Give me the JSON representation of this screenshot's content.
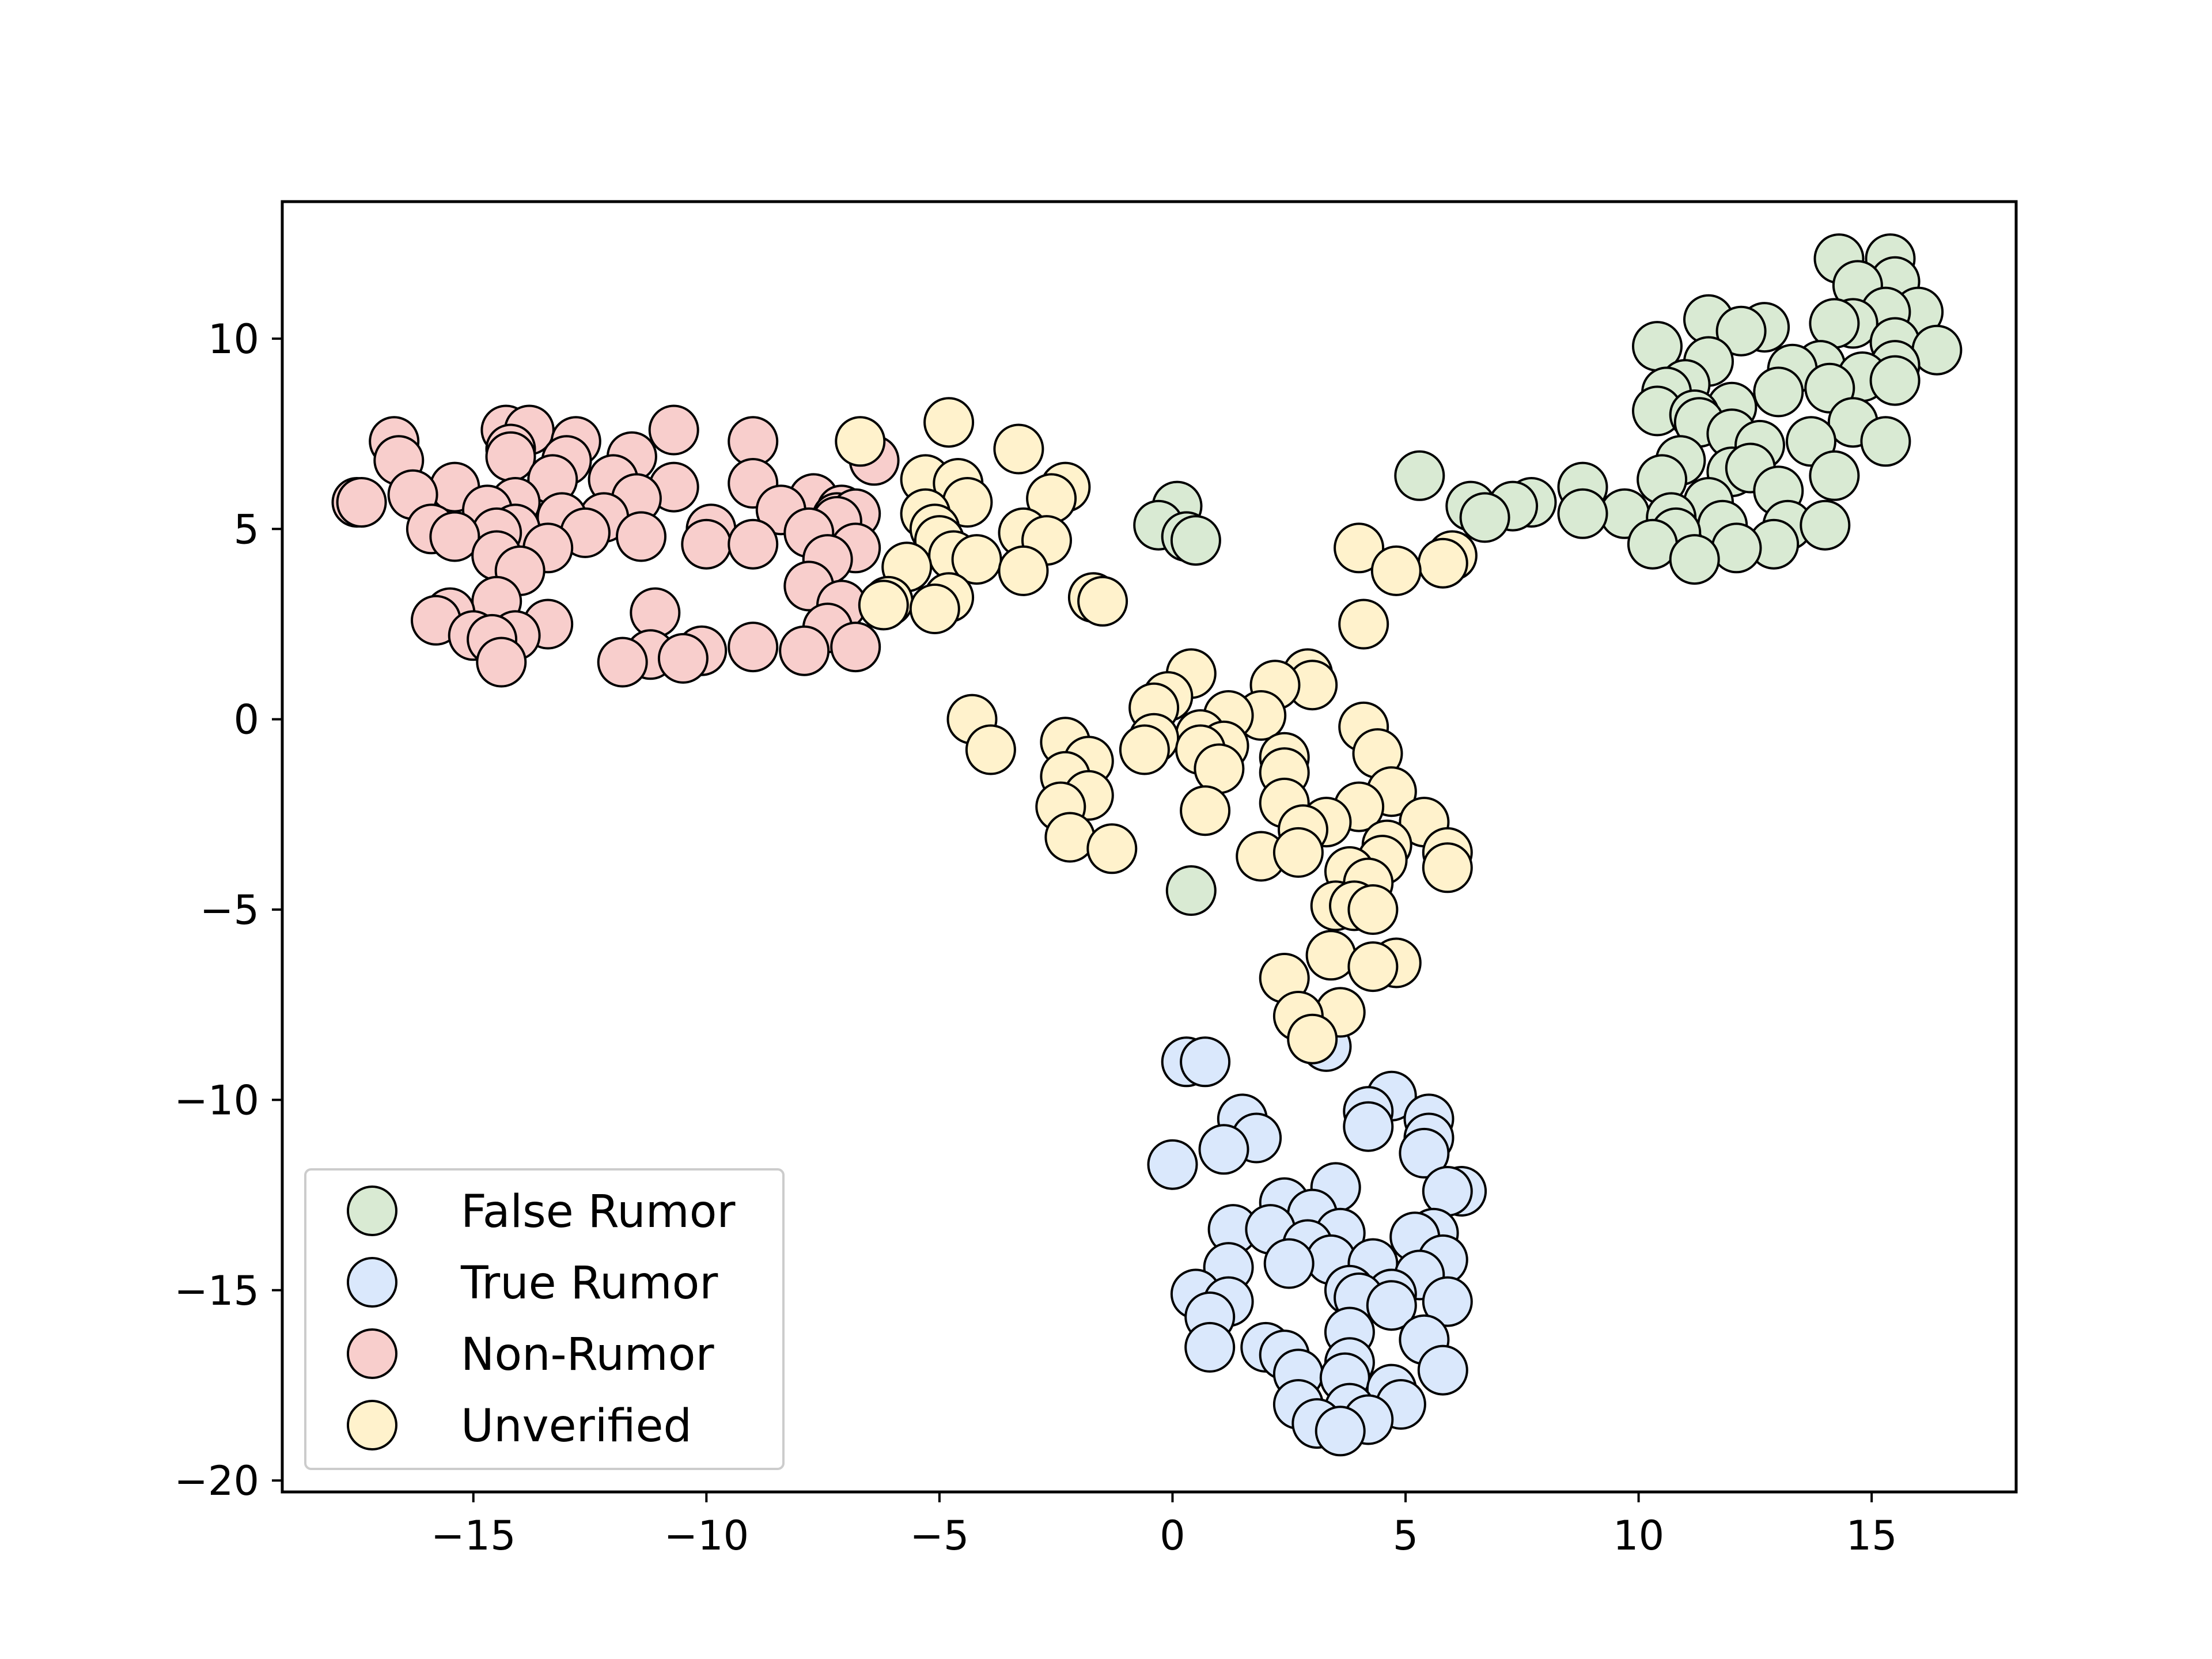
{
  "chart_data": {
    "type": "scatter",
    "title": "",
    "xlabel": "",
    "ylabel": "",
    "xlim": [
      -19.1,
      18.1
    ],
    "ylim": [
      -20.3,
      13.6
    ],
    "xticks": [
      -15,
      -10,
      -5,
      0,
      5,
      10,
      15
    ],
    "yticks": [
      -20,
      -15,
      -10,
      -5,
      0,
      5,
      10
    ],
    "xtick_labels": [
      "−15",
      "−10",
      "−5",
      "0",
      "5",
      "10",
      "15"
    ],
    "ytick_labels": [
      "−20",
      "−15",
      "−10",
      "−5",
      "0",
      "5",
      "10"
    ],
    "grid": false,
    "legend": {
      "position": "lower-left"
    },
    "series": [
      {
        "name": "False Rumor",
        "color": "#d9ead3",
        "points": [
          [
            15.4,
            12.1
          ],
          [
            14.3,
            12.1
          ],
          [
            15.5,
            11.5
          ],
          [
            14.7,
            11.4
          ],
          [
            16.0,
            10.7
          ],
          [
            15.3,
            10.7
          ],
          [
            11.5,
            10.5
          ],
          [
            14.6,
            10.4
          ],
          [
            14.2,
            10.4
          ],
          [
            12.7,
            10.3
          ],
          [
            12.2,
            10.2
          ],
          [
            15.5,
            9.9
          ],
          [
            10.4,
            9.8
          ],
          [
            16.4,
            9.7
          ],
          [
            11.5,
            9.4
          ],
          [
            15.5,
            9.3
          ],
          [
            13.9,
            9.3
          ],
          [
            13.3,
            9.2
          ],
          [
            14.8,
            9.0
          ],
          [
            15.5,
            8.9
          ],
          [
            11.0,
            8.8
          ],
          [
            14.1,
            8.7
          ],
          [
            10.6,
            8.6
          ],
          [
            13.0,
            8.6
          ],
          [
            12.0,
            8.2
          ],
          [
            10.4,
            8.1
          ],
          [
            11.2,
            8.0
          ],
          [
            11.3,
            7.8
          ],
          [
            14.6,
            7.8
          ],
          [
            12.0,
            7.5
          ],
          [
            13.7,
            7.3
          ],
          [
            15.3,
            7.3
          ],
          [
            12.6,
            7.2
          ],
          [
            10.9,
            6.8
          ],
          [
            12.0,
            6.5
          ],
          [
            12.4,
            6.6
          ],
          [
            14.2,
            6.4
          ],
          [
            10.5,
            6.3
          ],
          [
            5.3,
            6.4
          ],
          [
            8.8,
            6.1
          ],
          [
            13.0,
            6.0
          ],
          [
            7.7,
            5.7
          ],
          [
            6.4,
            5.6
          ],
          [
            7.3,
            5.6
          ],
          [
            11.5,
            5.7
          ],
          [
            0.1,
            5.6
          ],
          [
            9.7,
            5.4
          ],
          [
            8.8,
            5.4
          ],
          [
            6.7,
            5.3
          ],
          [
            10.7,
            5.3
          ],
          [
            11.8,
            5.1
          ],
          [
            13.2,
            5.1
          ],
          [
            14.0,
            5.1
          ],
          [
            -0.3,
            5.1
          ],
          [
            10.8,
            4.9
          ],
          [
            0.3,
            4.8
          ],
          [
            0.5,
            4.7
          ],
          [
            12.9,
            4.6
          ],
          [
            10.3,
            4.6
          ],
          [
            12.1,
            4.5
          ],
          [
            11.2,
            4.2
          ],
          [
            0.4,
            -4.5
          ]
        ]
      },
      {
        "name": "True Rumor",
        "color": "#dae8fc",
        "points": [
          [
            3.3,
            -8.6
          ],
          [
            0.3,
            -9.0
          ],
          [
            0.7,
            -9.0
          ],
          [
            4.7,
            -9.9
          ],
          [
            4.2,
            -10.3
          ],
          [
            5.5,
            -10.5
          ],
          [
            1.5,
            -10.5
          ],
          [
            4.2,
            -10.7
          ],
          [
            1.8,
            -11.0
          ],
          [
            5.5,
            -11.0
          ],
          [
            1.1,
            -11.3
          ],
          [
            5.4,
            -11.4
          ],
          [
            0.0,
            -11.7
          ],
          [
            3.5,
            -12.3
          ],
          [
            6.2,
            -12.4
          ],
          [
            5.9,
            -12.4
          ],
          [
            2.4,
            -12.7
          ],
          [
            3.0,
            -13.0
          ],
          [
            1.3,
            -13.4
          ],
          [
            2.1,
            -13.4
          ],
          [
            3.6,
            -13.5
          ],
          [
            5.6,
            -13.5
          ],
          [
            5.2,
            -13.6
          ],
          [
            2.9,
            -13.8
          ],
          [
            3.4,
            -14.2
          ],
          [
            5.8,
            -14.2
          ],
          [
            4.3,
            -14.3
          ],
          [
            2.5,
            -14.3
          ],
          [
            1.2,
            -14.4
          ],
          [
            5.3,
            -14.6
          ],
          [
            0.5,
            -15.1
          ],
          [
            4.7,
            -15.1
          ],
          [
            3.8,
            -15.0
          ],
          [
            4.0,
            -15.2
          ],
          [
            1.2,
            -15.3
          ],
          [
            5.9,
            -15.3
          ],
          [
            4.7,
            -15.4
          ],
          [
            0.8,
            -15.7
          ],
          [
            3.8,
            -16.1
          ],
          [
            5.4,
            -16.3
          ],
          [
            0.8,
            -16.5
          ],
          [
            2.0,
            -16.5
          ],
          [
            2.4,
            -16.7
          ],
          [
            3.8,
            -16.9
          ],
          [
            5.8,
            -17.1
          ],
          [
            2.7,
            -17.2
          ],
          [
            3.7,
            -17.3
          ],
          [
            4.7,
            -17.6
          ],
          [
            2.7,
            -18.0
          ],
          [
            4.9,
            -18.0
          ],
          [
            3.8,
            -18.1
          ],
          [
            4.2,
            -18.4
          ],
          [
            3.1,
            -18.5
          ],
          [
            3.6,
            -18.7
          ]
        ]
      },
      {
        "name": "Non-Rumor",
        "color": "#f8cecc",
        "points": [
          [
            -16.7,
            7.3
          ],
          [
            -14.3,
            7.6
          ],
          [
            -13.8,
            7.6
          ],
          [
            -10.7,
            7.6
          ],
          [
            -9.0,
            7.3
          ],
          [
            -12.8,
            7.3
          ],
          [
            -14.2,
            7.1
          ],
          [
            -14.2,
            6.9
          ],
          [
            -13.0,
            6.8
          ],
          [
            -16.6,
            6.8
          ],
          [
            -6.4,
            6.8
          ],
          [
            -11.6,
            6.9
          ],
          [
            -13.3,
            6.3
          ],
          [
            -12.0,
            6.3
          ],
          [
            -15.4,
            6.1
          ],
          [
            -10.7,
            6.1
          ],
          [
            -9.0,
            6.2
          ],
          [
            -16.3,
            5.9
          ],
          [
            -14.1,
            5.7
          ],
          [
            -17.5,
            5.7
          ],
          [
            -17.4,
            5.7
          ],
          [
            -11.5,
            5.8
          ],
          [
            -7.7,
            5.8
          ],
          [
            -14.7,
            5.5
          ],
          [
            -8.4,
            5.5
          ],
          [
            -7.1,
            5.5
          ],
          [
            -7.2,
            5.3
          ],
          [
            -6.8,
            5.4
          ],
          [
            -12.2,
            5.3
          ],
          [
            -13.1,
            5.3
          ],
          [
            -7.2,
            5.2
          ],
          [
            -15.9,
            5.0
          ],
          [
            -14.1,
            5.0
          ],
          [
            -9.9,
            5.0
          ],
          [
            -14.5,
            4.9
          ],
          [
            -7.8,
            4.9
          ],
          [
            -12.6,
            4.9
          ],
          [
            -15.4,
            4.8
          ],
          [
            -11.4,
            4.8
          ],
          [
            -10.0,
            4.6
          ],
          [
            -9.0,
            4.6
          ],
          [
            -6.8,
            4.5
          ],
          [
            -13.4,
            4.5
          ],
          [
            -14.5,
            4.3
          ],
          [
            -7.4,
            4.2
          ],
          [
            -14.0,
            3.9
          ],
          [
            -7.8,
            3.5
          ],
          [
            -14.5,
            3.1
          ],
          [
            -7.1,
            3.0
          ],
          [
            -11.1,
            2.8
          ],
          [
            -15.5,
            2.8
          ],
          [
            -15.8,
            2.6
          ],
          [
            -13.4,
            2.5
          ],
          [
            -7.4,
            2.4
          ],
          [
            -15.0,
            2.2
          ],
          [
            -14.1,
            2.2
          ],
          [
            -14.6,
            2.1
          ],
          [
            -9.0,
            1.9
          ],
          [
            -6.8,
            1.9
          ],
          [
            -10.1,
            1.8
          ],
          [
            -7.9,
            1.8
          ],
          [
            -11.2,
            1.7
          ],
          [
            -10.5,
            1.6
          ],
          [
            -11.8,
            1.5
          ],
          [
            -14.4,
            1.5
          ]
        ]
      },
      {
        "name": "Unverified",
        "color": "#fff2cc",
        "points": [
          [
            -4.8,
            7.8
          ],
          [
            -6.7,
            7.3
          ],
          [
            -3.3,
            7.1
          ],
          [
            -5.3,
            6.3
          ],
          [
            -4.6,
            6.2
          ],
          [
            -2.3,
            6.1
          ],
          [
            -2.6,
            5.8
          ],
          [
            -4.4,
            5.7
          ],
          [
            -5.3,
            5.4
          ],
          [
            -5.1,
            5.0
          ],
          [
            -3.2,
            4.9
          ],
          [
            -2.7,
            4.7
          ],
          [
            -5.0,
            4.7
          ],
          [
            -4.7,
            4.3
          ],
          [
            4.0,
            4.5
          ],
          [
            6.0,
            4.3
          ],
          [
            5.8,
            4.1
          ],
          [
            -4.2,
            4.2
          ],
          [
            -5.7,
            4.0
          ],
          [
            -3.2,
            3.9
          ],
          [
            4.8,
            3.9
          ],
          [
            -1.7,
            3.2
          ],
          [
            -4.8,
            3.2
          ],
          [
            -6.1,
            3.1
          ],
          [
            -1.5,
            3.1
          ],
          [
            -6.2,
            3.0
          ],
          [
            -5.1,
            2.9
          ],
          [
            4.1,
            2.5
          ],
          [
            0.4,
            1.2
          ],
          [
            2.9,
            1.2
          ],
          [
            3.0,
            0.9
          ],
          [
            2.2,
            0.9
          ],
          [
            -0.1,
            0.6
          ],
          [
            -0.4,
            0.3
          ],
          [
            1.9,
            0.1
          ],
          [
            1.2,
            0.1
          ],
          [
            -4.3,
            0.0
          ],
          [
            4.1,
            -0.2
          ],
          [
            0.6,
            -0.4
          ],
          [
            -0.4,
            -0.5
          ],
          [
            -2.3,
            -0.6
          ],
          [
            1.1,
            -0.7
          ],
          [
            -0.6,
            -0.8
          ],
          [
            0.6,
            -0.8
          ],
          [
            -3.9,
            -0.8
          ],
          [
            2.4,
            -1.0
          ],
          [
            4.4,
            -0.9
          ],
          [
            -1.8,
            -1.1
          ],
          [
            1.0,
            -1.3
          ],
          [
            2.4,
            -1.4
          ],
          [
            -2.3,
            -1.5
          ],
          [
            4.7,
            -1.9
          ],
          [
            -1.8,
            -2.0
          ],
          [
            2.4,
            -2.2
          ],
          [
            -2.4,
            -2.3
          ],
          [
            4.0,
            -2.3
          ],
          [
            0.7,
            -2.4
          ],
          [
            3.3,
            -2.7
          ],
          [
            5.4,
            -2.7
          ],
          [
            2.8,
            -2.9
          ],
          [
            -2.2,
            -3.1
          ],
          [
            4.6,
            -3.3
          ],
          [
            -1.3,
            -3.4
          ],
          [
            1.9,
            -3.6
          ],
          [
            2.7,
            -3.5
          ],
          [
            5.9,
            -3.5
          ],
          [
            4.5,
            -3.7
          ],
          [
            5.9,
            -3.9
          ],
          [
            3.8,
            -4.0
          ],
          [
            4.2,
            -4.3
          ],
          [
            3.5,
            -4.9
          ],
          [
            3.9,
            -4.9
          ],
          [
            4.3,
            -5.0
          ],
          [
            3.4,
            -6.2
          ],
          [
            4.8,
            -6.4
          ],
          [
            4.3,
            -6.5
          ],
          [
            2.4,
            -6.8
          ],
          [
            3.6,
            -7.7
          ],
          [
            2.7,
            -7.8
          ],
          [
            3.0,
            -8.4
          ]
        ]
      }
    ]
  }
}
